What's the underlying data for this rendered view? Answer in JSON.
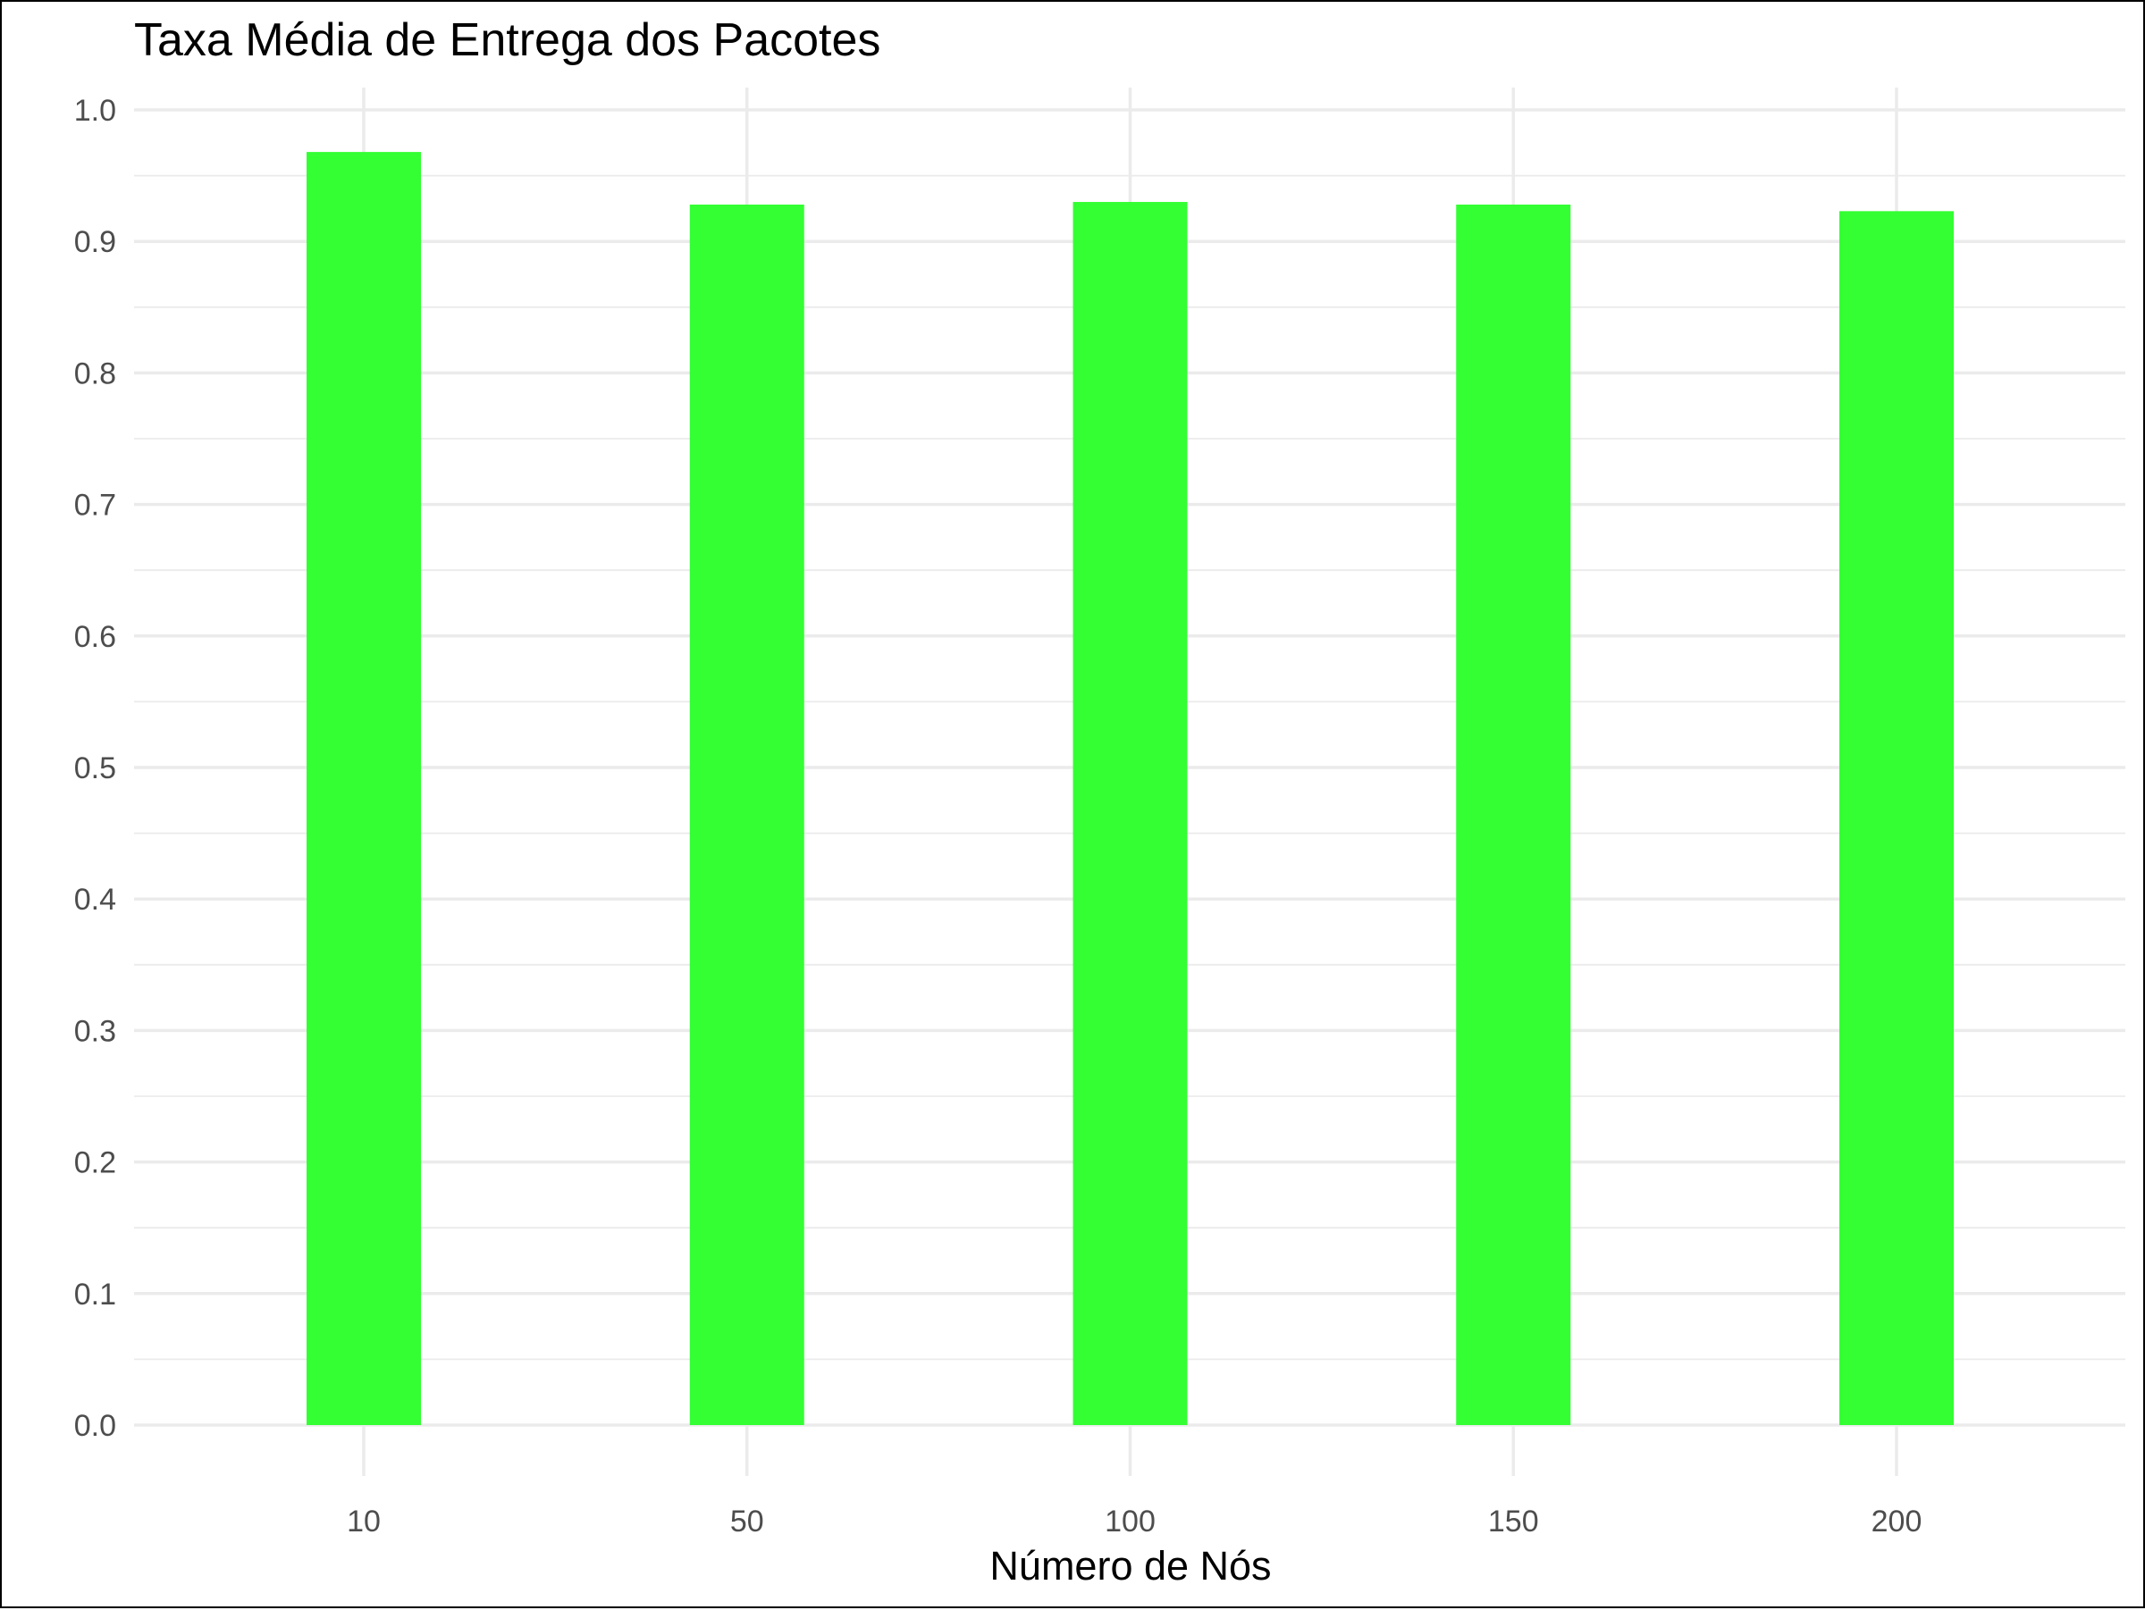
{
  "chart_data": {
    "type": "bar",
    "title": "Taxa Média de Entrega dos Pacotes",
    "xlabel": "Número de Nós",
    "ylabel": "",
    "categories": [
      "10",
      "50",
      "100",
      "150",
      "200"
    ],
    "values": [
      0.968,
      0.928,
      0.93,
      0.928,
      0.923
    ],
    "ylim": [
      0,
      1.0
    ],
    "yticks": [
      "0.0",
      "0.1",
      "0.2",
      "0.3",
      "0.4",
      "0.5",
      "0.6",
      "0.7",
      "0.8",
      "0.9",
      "1.0"
    ],
    "grid": true,
    "legend": "none",
    "bar_color": "#33ff33"
  }
}
